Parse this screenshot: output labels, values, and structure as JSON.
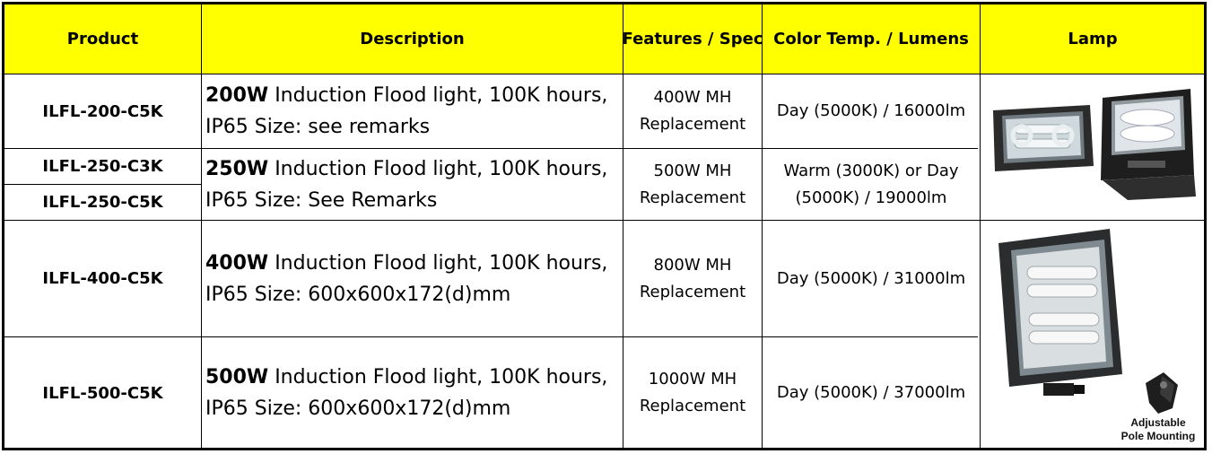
{
  "header": {
    "product": "Product",
    "description": "Description",
    "features": "Features / Spec",
    "color": "Color Temp. / Lumens",
    "lamp": "Lamp"
  },
  "rows": [
    {
      "product": "ILFL-200-C5K",
      "watt": "200W",
      "desc_line1": " Induction Flood light, 100K hours,",
      "desc_line2": "IP65  Size: see remarks",
      "spec_line1": "400W MH",
      "spec_line2": "Replacement",
      "color": "Day (5000K) / 16000lm"
    },
    {
      "product_a": "ILFL-250-C3K",
      "product_b": "ILFL-250-C5K",
      "watt": "250W",
      "desc_line1": " Induction Flood light, 100K hours,",
      "desc_line2": "IP65  Size: See Remarks",
      "spec_line1": "500W MH",
      "spec_line2": "Replacement",
      "color_line1": "Warm (3000K) or Day",
      "color_line2": "(5000K) / 19000lm"
    },
    {
      "product": "ILFL-400-C5K",
      "watt": "400W",
      "desc_line1": " Induction Flood light, 100K hours,",
      "desc_line2": "IP65 Size: 600x600x172(d)mm",
      "spec_line1": "800W MH",
      "spec_line2": "Replacement",
      "color": "Day (5000K) / 31000lm"
    },
    {
      "product": "ILFL-500-C5K",
      "watt": "500W",
      "desc_line1": " Induction Flood light, 100K hours,",
      "desc_line2": "IP65  Size: 600x600x172(d)mm",
      "spec_line1": "1000W MH",
      "spec_line2": "Replacement",
      "color": "Day (5000K) / 37000lm"
    }
  ],
  "lamp_caption": {
    "line1": "Adjustable",
    "line2": "Pole Mounting"
  },
  "colors": {
    "header_bg": "#ffff00",
    "border": "#000000"
  }
}
